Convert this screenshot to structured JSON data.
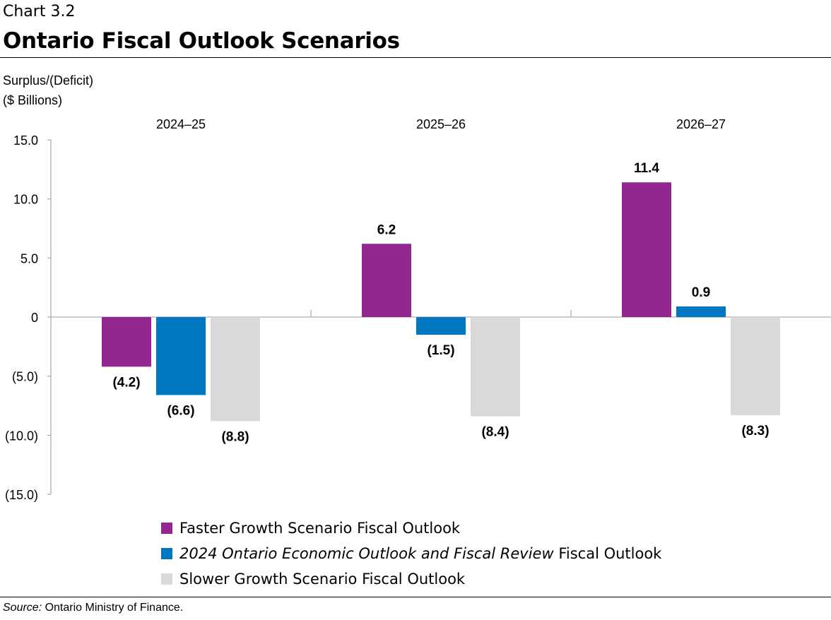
{
  "header": {
    "chart_number": "Chart 3.2",
    "title": "Ontario Fiscal Outlook Scenarios"
  },
  "source": {
    "label": "Source:",
    "text": " Ontario Ministry of Finance."
  },
  "colors": {
    "faster": "#92278F",
    "ontario": "#0077C0",
    "slower": "#D9D9D9"
  },
  "chart_data": {
    "type": "bar",
    "title": "Ontario Fiscal Outlook Scenarios",
    "ylabel_lines": [
      "Surplus/(Deficit)",
      "($ Billions)"
    ],
    "categories": [
      "2024–25",
      "2025–26",
      "2026–27"
    ],
    "ylim": [
      -15,
      15
    ],
    "yticks": [
      15,
      10,
      5,
      0,
      -5,
      -10,
      -15
    ],
    "ytick_labels": [
      "15.0",
      "10.0",
      "5.0",
      "0",
      "(5.0)",
      "(10.0)",
      "(15.0)"
    ],
    "legend_position": "bottom",
    "series": [
      {
        "name": "Faster Growth Scenario Fiscal Outlook",
        "values": [
          -4.2,
          6.2,
          11.4
        ],
        "labels": [
          "(4.2)",
          "6.2",
          "11.4"
        ]
      },
      {
        "name": "2024 Ontario Economic Outlook and Fiscal Review Fiscal Outlook",
        "name_italic": "2024 Ontario Economic Outlook and Fiscal Review",
        "name_rest": " Fiscal Outlook",
        "values": [
          -6.6,
          -1.5,
          0.9
        ],
        "labels": [
          "(6.6)",
          "(1.5)",
          "0.9"
        ]
      },
      {
        "name": "Slower Growth Scenario Fiscal Outlook",
        "values": [
          -8.8,
          -8.4,
          -8.3
        ],
        "labels": [
          "(8.8)",
          "(8.4)",
          "(8.3)"
        ]
      }
    ]
  }
}
